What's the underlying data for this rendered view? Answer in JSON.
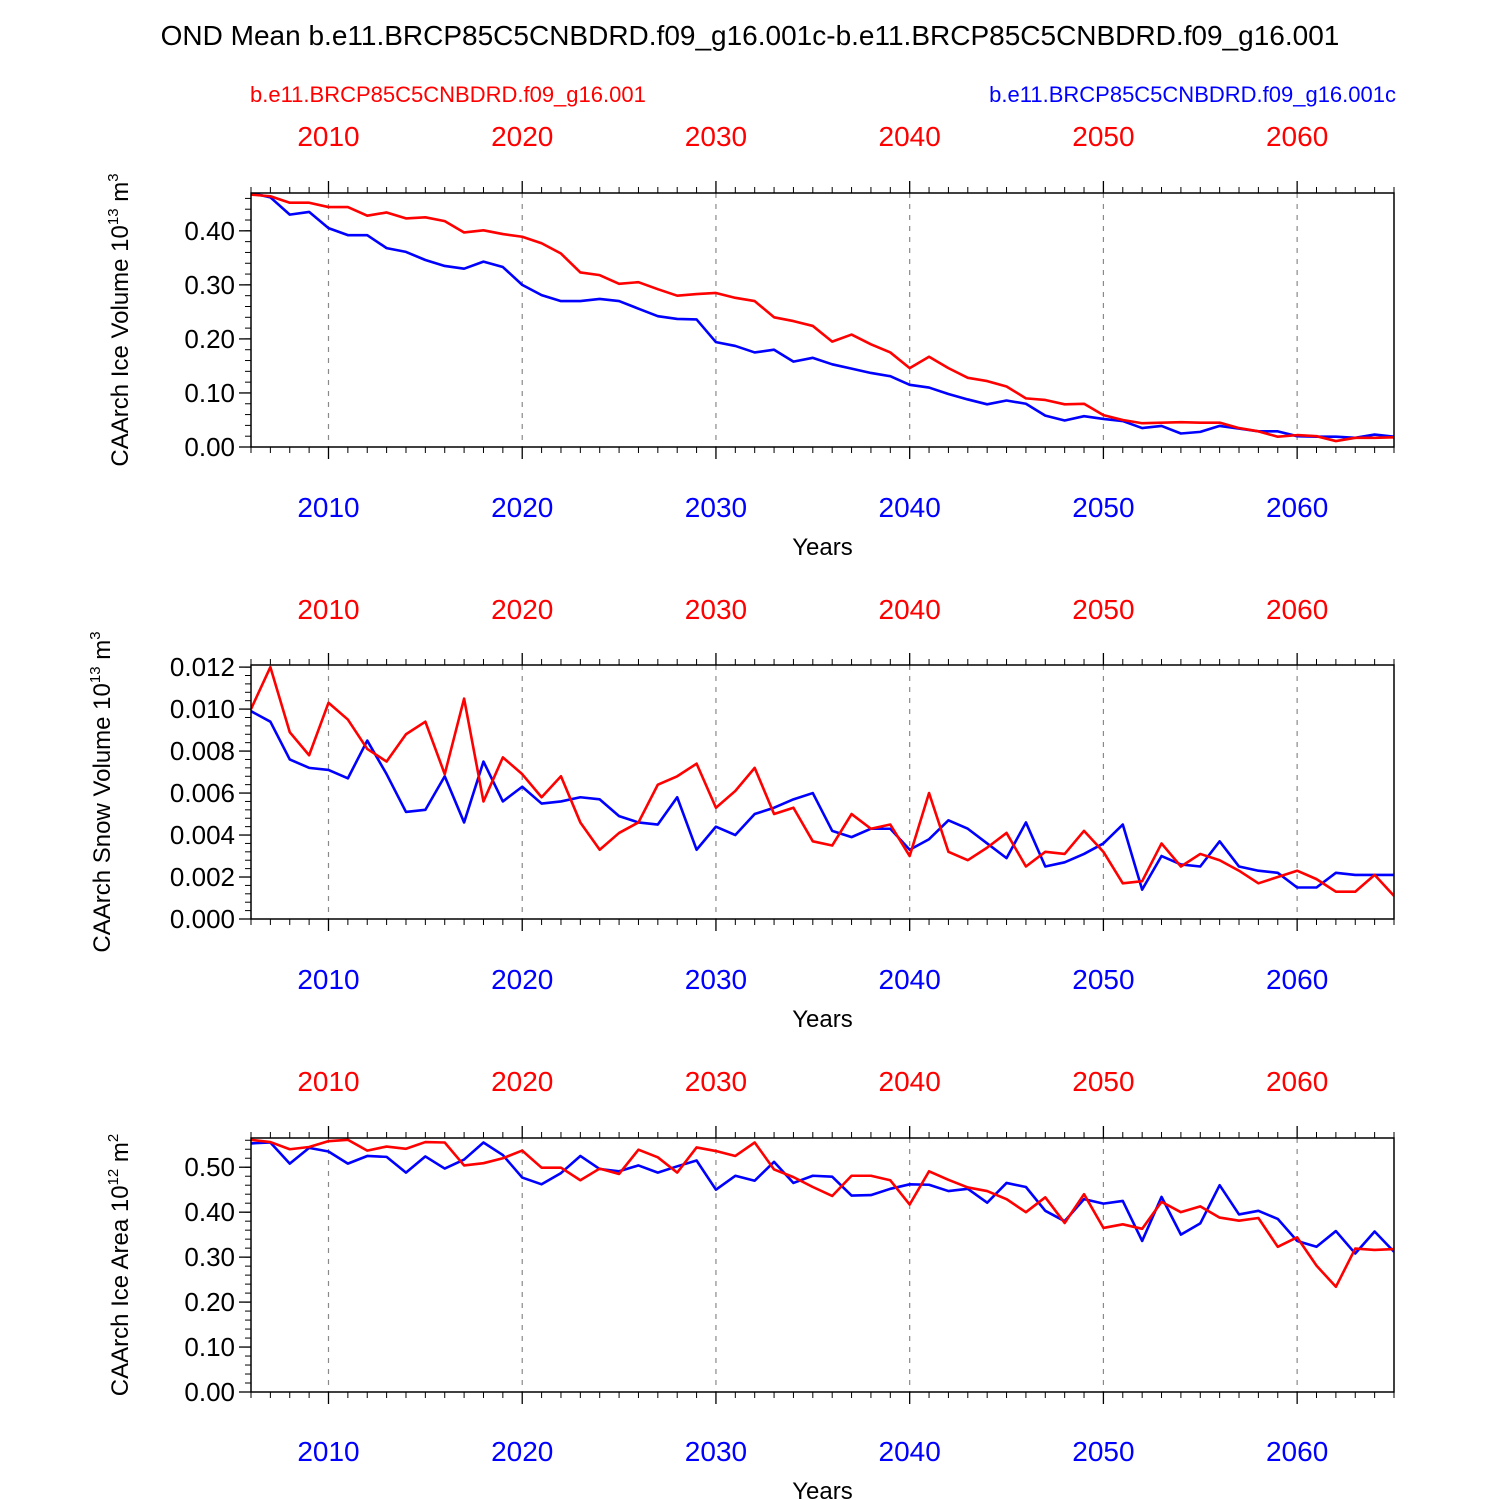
{
  "header": {
    "title": "OND Mean b.e11.BRCP85C5CNBDRD.f09_g16.001c-b.e11.BRCP85C5CNBDRD.f09_g16.001",
    "legend_left": "b.e11.BRCP85C5CNBDRD.f09_g16.001",
    "legend_right": "b.e11.BRCP85C5CNBDRD.f09_g16.001c"
  },
  "colors": {
    "red": "#ff0000",
    "blue": "#0000ff",
    "frame": "#000000",
    "grid": "#8a8a8a"
  },
  "chart_data": [
    {
      "type": "line",
      "ylabel": "CAArch Ice Volume 10",
      "ylabel_sup": "13",
      "ylabel_unit": " m",
      "ylabel_unit_sup": "3",
      "xlabel": "Years",
      "xlim": [
        2006,
        2065
      ],
      "ylim": [
        0.0,
        0.47
      ],
      "xticks": [
        2010,
        2020,
        2030,
        2040,
        2050,
        2060
      ],
      "yticks": [
        0.0,
        0.1,
        0.2,
        0.3,
        0.4
      ],
      "ytick_labels": [
        "0.00",
        "0.10",
        "0.20",
        "0.30",
        "0.40"
      ],
      "yminor_step": 0.02,
      "x": [
        2006,
        2007,
        2008,
        2009,
        2010,
        2011,
        2012,
        2013,
        2014,
        2015,
        2016,
        2017,
        2018,
        2019,
        2020,
        2021,
        2022,
        2023,
        2024,
        2025,
        2026,
        2027,
        2028,
        2029,
        2030,
        2031,
        2032,
        2033,
        2034,
        2035,
        2036,
        2037,
        2038,
        2039,
        2040,
        2041,
        2042,
        2043,
        2044,
        2045,
        2046,
        2047,
        2048,
        2049,
        2050,
        2051,
        2052,
        2053,
        2054,
        2055,
        2056,
        2057,
        2058,
        2059,
        2060,
        2061,
        2062,
        2063,
        2064,
        2065
      ],
      "series": [
        {
          "name": "b.e11.BRCP85C5CNBDRD.f09_g16.001c",
          "color": "#0000ff",
          "values": [
            0.47,
            0.462,
            0.43,
            0.435,
            0.405,
            0.392,
            0.392,
            0.368,
            0.361,
            0.346,
            0.335,
            0.33,
            0.343,
            0.333,
            0.3,
            0.281,
            0.27,
            0.27,
            0.274,
            0.27,
            0.256,
            0.242,
            0.237,
            0.236,
            0.194,
            0.187,
            0.175,
            0.18,
            0.158,
            0.165,
            0.153,
            0.145,
            0.137,
            0.131,
            0.115,
            0.11,
            0.098,
            0.088,
            0.079,
            0.086,
            0.08,
            0.058,
            0.049,
            0.057,
            0.052,
            0.048,
            0.035,
            0.039,
            0.025,
            0.028,
            0.039,
            0.034,
            0.029,
            0.029,
            0.02,
            0.019,
            0.019,
            0.017,
            0.023,
            0.019
          ]
        },
        {
          "name": "b.e11.BRCP85C5CNBDRD.f09_g16.001",
          "color": "#ff0000",
          "values": [
            0.467,
            0.464,
            0.452,
            0.452,
            0.444,
            0.444,
            0.428,
            0.434,
            0.423,
            0.425,
            0.418,
            0.397,
            0.401,
            0.394,
            0.389,
            0.377,
            0.358,
            0.323,
            0.318,
            0.302,
            0.305,
            0.292,
            0.28,
            0.283,
            0.285,
            0.276,
            0.27,
            0.24,
            0.233,
            0.224,
            0.195,
            0.208,
            0.19,
            0.175,
            0.146,
            0.167,
            0.146,
            0.128,
            0.122,
            0.112,
            0.09,
            0.087,
            0.079,
            0.08,
            0.059,
            0.05,
            0.044,
            0.045,
            0.046,
            0.045,
            0.045,
            0.035,
            0.029,
            0.019,
            0.022,
            0.02,
            0.011,
            0.017,
            0.017,
            0.018
          ]
        }
      ]
    },
    {
      "type": "line",
      "ylabel": "CAArch Snow Volume 10",
      "ylabel_sup": "13",
      "ylabel_unit": " m",
      "ylabel_unit_sup": "3",
      "xlabel": "Years",
      "xlim": [
        2006,
        2065
      ],
      "ylim": [
        0.0,
        0.0121
      ],
      "xticks": [
        2010,
        2020,
        2030,
        2040,
        2050,
        2060
      ],
      "yticks": [
        0.0,
        0.002,
        0.004,
        0.006,
        0.008,
        0.01,
        0.012
      ],
      "ytick_labels": [
        "0.000",
        "0.002",
        "0.004",
        "0.006",
        "0.008",
        "0.010",
        "0.012"
      ],
      "yminor_step": 0.0004,
      "x": [
        2006,
        2007,
        2008,
        2009,
        2010,
        2011,
        2012,
        2013,
        2014,
        2015,
        2016,
        2017,
        2018,
        2019,
        2020,
        2021,
        2022,
        2023,
        2024,
        2025,
        2026,
        2027,
        2028,
        2029,
        2030,
        2031,
        2032,
        2033,
        2034,
        2035,
        2036,
        2037,
        2038,
        2039,
        2040,
        2041,
        2042,
        2043,
        2044,
        2045,
        2046,
        2047,
        2048,
        2049,
        2050,
        2051,
        2052,
        2053,
        2054,
        2055,
        2056,
        2057,
        2058,
        2059,
        2060,
        2061,
        2062,
        2063,
        2064,
        2065
      ],
      "series": [
        {
          "name": "b.e11.BRCP85C5CNBDRD.f09_g16.001c",
          "color": "#0000ff",
          "values": [
            0.0099,
            0.0094,
            0.0076,
            0.0072,
            0.0071,
            0.0067,
            0.0085,
            0.0069,
            0.0051,
            0.0052,
            0.0068,
            0.0046,
            0.0075,
            0.0056,
            0.0063,
            0.0055,
            0.0056,
            0.0058,
            0.0057,
            0.0049,
            0.0046,
            0.0045,
            0.0058,
            0.0033,
            0.0044,
            0.004,
            0.005,
            0.0053,
            0.0057,
            0.006,
            0.0042,
            0.0039,
            0.0043,
            0.0043,
            0.0033,
            0.0038,
            0.0047,
            0.0043,
            0.0036,
            0.0029,
            0.0046,
            0.0025,
            0.0027,
            0.0031,
            0.0036,
            0.0045,
            0.0014,
            0.003,
            0.0026,
            0.0025,
            0.0037,
            0.0025,
            0.0023,
            0.0022,
            0.0015,
            0.0015,
            0.0022,
            0.0021,
            0.0021,
            0.0021
          ]
        },
        {
          "name": "b.e11.BRCP85C5CNBDRD.f09_g16.001",
          "color": "#ff0000",
          "values": [
            0.01,
            0.012,
            0.0089,
            0.0078,
            0.0103,
            0.0095,
            0.0081,
            0.0075,
            0.0088,
            0.0094,
            0.0069,
            0.0105,
            0.0056,
            0.0077,
            0.0069,
            0.0058,
            0.0068,
            0.0046,
            0.0033,
            0.0041,
            0.0046,
            0.0064,
            0.0068,
            0.0074,
            0.0053,
            0.0061,
            0.0072,
            0.005,
            0.0053,
            0.0037,
            0.0035,
            0.005,
            0.0043,
            0.0045,
            0.003,
            0.006,
            0.0032,
            0.0028,
            0.0034,
            0.0041,
            0.0025,
            0.0032,
            0.0031,
            0.0042,
            0.0032,
            0.0017,
            0.0018,
            0.0036,
            0.0025,
            0.0031,
            0.0028,
            0.0023,
            0.0017,
            0.002,
            0.0023,
            0.0019,
            0.0013,
            0.0013,
            0.0021,
            0.0011
          ]
        }
      ]
    },
    {
      "type": "line",
      "ylabel": "CAArch Ice Area 10",
      "ylabel_sup": "12",
      "ylabel_unit": " m",
      "ylabel_unit_sup": "2",
      "xlabel": "Years",
      "xlim": [
        2006,
        2065
      ],
      "ylim": [
        0.0,
        0.565
      ],
      "xticks": [
        2010,
        2020,
        2030,
        2040,
        2050,
        2060
      ],
      "yticks": [
        0.0,
        0.1,
        0.2,
        0.3,
        0.4,
        0.5
      ],
      "ytick_labels": [
        "0.00",
        "0.10",
        "0.20",
        "0.30",
        "0.40",
        "0.50"
      ],
      "yminor_step": 0.02,
      "x": [
        2006,
        2007,
        2008,
        2009,
        2010,
        2011,
        2012,
        2013,
        2014,
        2015,
        2016,
        2017,
        2018,
        2019,
        2020,
        2021,
        2022,
        2023,
        2024,
        2025,
        2026,
        2027,
        2028,
        2029,
        2030,
        2031,
        2032,
        2033,
        2034,
        2035,
        2036,
        2037,
        2038,
        2039,
        2040,
        2041,
        2042,
        2043,
        2044,
        2045,
        2046,
        2047,
        2048,
        2049,
        2050,
        2051,
        2052,
        2053,
        2054,
        2055,
        2056,
        2057,
        2058,
        2059,
        2060,
        2061,
        2062,
        2063,
        2064,
        2065
      ],
      "series": [
        {
          "name": "b.e11.BRCP85C5CNBDRD.f09_g16.001c",
          "color": "#0000ff",
          "values": [
            0.553,
            0.555,
            0.508,
            0.543,
            0.535,
            0.508,
            0.525,
            0.523,
            0.488,
            0.524,
            0.497,
            0.517,
            0.555,
            0.527,
            0.477,
            0.462,
            0.487,
            0.525,
            0.496,
            0.491,
            0.504,
            0.488,
            0.502,
            0.515,
            0.45,
            0.481,
            0.47,
            0.512,
            0.465,
            0.481,
            0.479,
            0.437,
            0.438,
            0.452,
            0.462,
            0.461,
            0.447,
            0.452,
            0.421,
            0.465,
            0.456,
            0.403,
            0.38,
            0.429,
            0.419,
            0.425,
            0.336,
            0.434,
            0.35,
            0.375,
            0.46,
            0.395,
            0.403,
            0.385,
            0.336,
            0.323,
            0.358,
            0.308,
            0.357,
            0.312
          ]
        },
        {
          "name": "b.e11.BRCP85C5CNBDRD.f09_g16.001",
          "color": "#ff0000",
          "values": [
            0.561,
            0.556,
            0.54,
            0.545,
            0.558,
            0.561,
            0.537,
            0.546,
            0.541,
            0.556,
            0.555,
            0.504,
            0.509,
            0.52,
            0.537,
            0.499,
            0.499,
            0.471,
            0.497,
            0.485,
            0.539,
            0.522,
            0.488,
            0.544,
            0.536,
            0.525,
            0.555,
            0.495,
            0.478,
            0.456,
            0.436,
            0.481,
            0.481,
            0.471,
            0.417,
            0.491,
            0.472,
            0.455,
            0.447,
            0.429,
            0.4,
            0.433,
            0.376,
            0.44,
            0.365,
            0.373,
            0.363,
            0.423,
            0.4,
            0.413,
            0.388,
            0.381,
            0.387,
            0.323,
            0.344,
            0.281,
            0.234,
            0.319,
            0.316,
            0.318
          ]
        }
      ]
    }
  ]
}
